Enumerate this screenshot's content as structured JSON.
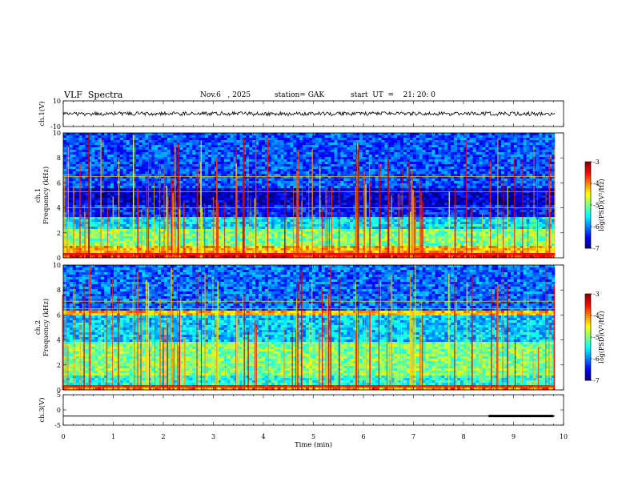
{
  "header": {
    "title": "VLF  Spectra",
    "date": "Nov.6   , 2025",
    "station": "station= GAK",
    "start": "start  UT  =    21: 20: 0"
  },
  "colors": {
    "jet": [
      "#00007f",
      "#0000ff",
      "#0080ff",
      "#00ffff",
      "#80ff80",
      "#ffff00",
      "#ff8000",
      "#ff0000",
      "#7f0000"
    ],
    "axis": "#000000"
  },
  "chart_data": [
    {
      "type": "line",
      "name": "ch1-waveform",
      "ylabel": "ch.1(V)",
      "ylim": [
        -10,
        10
      ],
      "yticks": [
        "10",
        "-10"
      ],
      "xlim": [
        0,
        10
      ],
      "description_values": {
        "mean": 0,
        "amplitude": 1.5
      }
    },
    {
      "type": "heatmap",
      "name": "ch1-spectrogram",
      "ylabel": "ch.1\nFrequency  (kHz)",
      "ylim": [
        0,
        10
      ],
      "yticks": [
        "0",
        "2",
        "4",
        "6",
        "8",
        "10"
      ],
      "xlim": [
        0,
        9.85
      ],
      "colorbar": {
        "label": "log(PSD)(V²/Hz)",
        "range": [
          -7,
          -3
        ],
        "ticks": [
          "-3",
          "-4",
          "-5",
          "-6",
          "-7"
        ]
      },
      "bands_khz": [
        {
          "from": 0.0,
          "to": 0.4,
          "level": -3.5
        },
        {
          "from": 0.4,
          "to": 1.0,
          "level": -4.2
        },
        {
          "from": 1.0,
          "to": 2.3,
          "level": -5.0
        },
        {
          "from": 2.3,
          "to": 3.3,
          "level": -5.6
        },
        {
          "from": 3.3,
          "to": 4.2,
          "level": -6.4
        },
        {
          "from": 4.2,
          "to": 5.5,
          "level": -6.7
        },
        {
          "from": 5.5,
          "to": 10.0,
          "level": -6.2
        }
      ],
      "tones_khz": [
        0.3,
        0.6,
        4.0,
        5.3,
        6.5
      ]
    },
    {
      "type": "heatmap",
      "name": "ch2-spectrogram",
      "ylabel": "ch.2\nFrequency  (kHz)",
      "ylim": [
        0,
        10
      ],
      "yticks": [
        "0",
        "2",
        "4",
        "6",
        "8",
        "10"
      ],
      "xlim": [
        0,
        9.85
      ],
      "colorbar": {
        "label": "log(PSD)(V²/Hz)",
        "range": [
          -7,
          -3
        ],
        "ticks": [
          "-3",
          "-4",
          "-5",
          "-6",
          "-7"
        ]
      },
      "bands_khz": [
        {
          "from": 0.0,
          "to": 0.4,
          "level": -4.0
        },
        {
          "from": 0.4,
          "to": 1.2,
          "level": -5.4
        },
        {
          "from": 1.2,
          "to": 3.8,
          "level": -5.0
        },
        {
          "from": 3.8,
          "to": 6.0,
          "level": -5.7
        },
        {
          "from": 6.0,
          "to": 6.3,
          "level": -4.2
        },
        {
          "from": 6.3,
          "to": 10.0,
          "level": -6.1
        }
      ],
      "tones_khz": [
        0.3,
        2.0,
        6.1,
        6.5,
        7.1
      ]
    },
    {
      "type": "line",
      "name": "ch3-signal",
      "ylabel": "ch.3(V)",
      "ylim": [
        -5,
        5
      ],
      "yticks": [
        "5",
        "0",
        "-5"
      ],
      "xlim": [
        0,
        10
      ],
      "level": -2,
      "marker_segment_min": [
        8.5,
        9.8
      ]
    }
  ],
  "xaxis": {
    "label": "Time  (min)",
    "ticks": [
      "0",
      "1",
      "2",
      "3",
      "4",
      "5",
      "6",
      "7",
      "8",
      "9",
      "10"
    ],
    "range": [
      0,
      10
    ]
  }
}
